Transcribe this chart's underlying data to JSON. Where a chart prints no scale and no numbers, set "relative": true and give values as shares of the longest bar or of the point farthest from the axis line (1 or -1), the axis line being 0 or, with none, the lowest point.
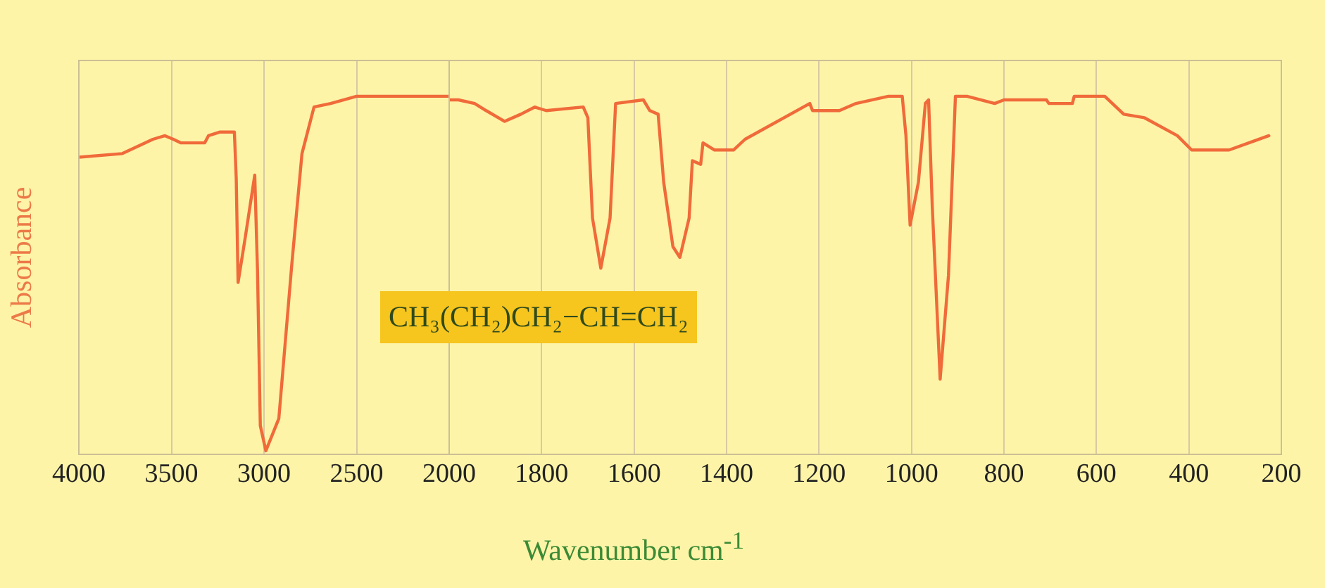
{
  "chart_data": [
    {
      "type": "line",
      "relative": true,
      "ylabel": "Absorbance",
      "annotations": [
        "CH₃(CH₂)CH₂−CH=CH₂"
      ],
      "xlim": [
        4000,
        2000
      ],
      "xticks": [
        4000,
        3500,
        3000,
        2500,
        2000
      ],
      "grid": "x",
      "marker": "none",
      "line_style": "solid",
      "series": [
        {
          "color": "#f06a3a",
          "x": [
            4000,
            3765,
            3600,
            3535,
            3490,
            3450,
            3320,
            3300,
            3240,
            3160,
            3150,
            3140,
            3100,
            3050,
            3035,
            3020,
            2990,
            2920,
            2850,
            2795,
            2730,
            2640,
            2500,
            2440,
            2000
          ],
          "values": [
            0.83,
            0.84,
            0.88,
            0.89,
            0.88,
            0.87,
            0.87,
            0.89,
            0.9,
            0.9,
            0.77,
            0.48,
            0.61,
            0.78,
            0.51,
            0.08,
            0.01,
            0.1,
            0.53,
            0.84,
            0.97,
            0.98,
            1.0,
            1.0,
            1.0
          ]
        }
      ]
    },
    {
      "type": "line",
      "relative": true,
      "xlabel": "Wavenumber cm$^{-1}$",
      "xlim": [
        2000,
        200
      ],
      "xticks": [
        1800,
        1600,
        1400,
        1200,
        1000,
        800,
        600,
        400,
        200
      ],
      "grid": "x",
      "marker": "none",
      "line_style": "solid",
      "series": [
        {
          "color": "#f06a3a",
          "x": [
            2000,
            1980,
            1945,
            1920,
            1880,
            1845,
            1815,
            1790,
            1710,
            1700,
            1690,
            1672,
            1652,
            1640,
            1580,
            1566,
            1548,
            1536,
            1516,
            1501,
            1481,
            1474,
            1456,
            1451,
            1426,
            1385,
            1360,
            1220,
            1214,
            1156,
            1120,
            1050,
            1020,
            1012,
            1003,
            985,
            970,
            963,
            955,
            938,
            920,
            905,
            880,
            820,
            800,
            708,
            703,
            652,
            648,
            582,
            541,
            496,
            425,
            394,
            313,
            227
          ],
          "values": [
            0.99,
            0.99,
            0.98,
            0.96,
            0.93,
            0.95,
            0.97,
            0.96,
            0.97,
            0.94,
            0.66,
            0.52,
            0.66,
            0.98,
            0.99,
            0.96,
            0.95,
            0.76,
            0.58,
            0.55,
            0.66,
            0.82,
            0.81,
            0.87,
            0.85,
            0.85,
            0.88,
            0.98,
            0.96,
            0.96,
            0.98,
            1.0,
            1.0,
            0.89,
            0.64,
            0.76,
            0.98,
            0.99,
            0.69,
            0.21,
            0.5,
            1.0,
            1.0,
            0.98,
            0.99,
            0.99,
            0.98,
            0.98,
            1.0,
            1.0,
            0.95,
            0.94,
            0.89,
            0.85,
            0.85,
            0.89
          ]
        }
      ]
    }
  ]
}
